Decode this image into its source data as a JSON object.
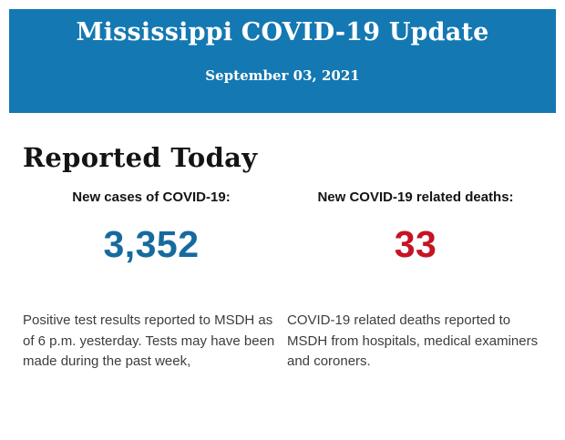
{
  "colors": {
    "banner_bg": "#1478b2",
    "banner_text": "#ffffff",
    "heading_text": "#141414",
    "body_text": "#3d3d3d",
    "cases_number": "#176a9d",
    "deaths_number": "#c41425"
  },
  "header": {
    "title": "Mississippi COVID-19 Update",
    "date": "September 03, 2021"
  },
  "main": {
    "section_title": "Reported Today",
    "stats": [
      {
        "label": "New cases of COVID-19:",
        "value": "3,352",
        "description": "Positive test results reported to MSDH as of 6 p.m. yesterday. Tests may have been made during the past week,"
      },
      {
        "label": "New COVID-19 related deaths:",
        "value": "33",
        "description": "COVID-19 related deaths reported to MSDH from hospitals, medical examiners and coroners."
      }
    ]
  }
}
